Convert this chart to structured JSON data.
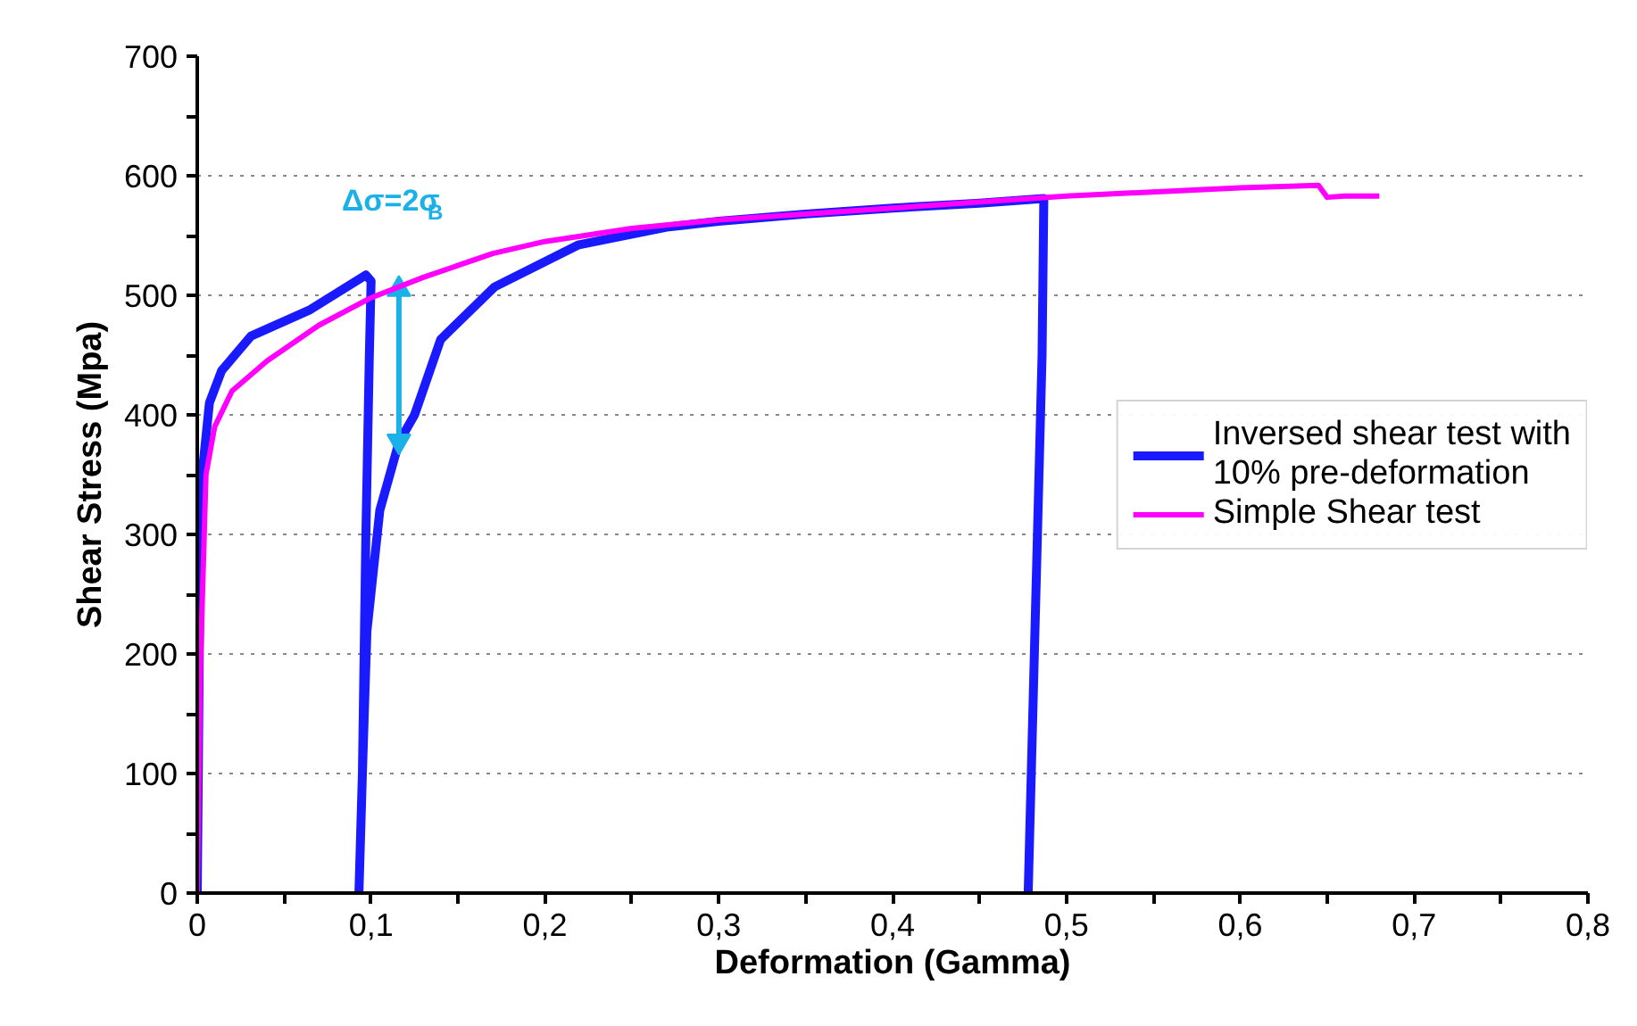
{
  "chart_data": {
    "type": "line",
    "xlabel": "Deformation (Gamma)",
    "ylabel": "Shear Stress (Mpa)",
    "xlim": [
      0,
      0.8
    ],
    "ylim": [
      0,
      700
    ],
    "xticks": [
      0,
      {
        "value": 0.05,
        "label": null
      },
      {
        "value": 0.1,
        "label": "0,1"
      },
      {
        "value": 0.15,
        "label": null
      },
      {
        "value": 0.2,
        "label": "0,2"
      },
      {
        "value": 0.25,
        "label": null
      },
      {
        "value": 0.3,
        "label": "0,3"
      },
      {
        "value": 0.35,
        "label": null
      },
      {
        "value": 0.4,
        "label": "0,4"
      },
      {
        "value": 0.45,
        "label": null
      },
      {
        "value": 0.5,
        "label": "0,5"
      },
      {
        "value": 0.55,
        "label": null
      },
      {
        "value": 0.6,
        "label": "0,6"
      },
      {
        "value": 0.65,
        "label": null
      },
      {
        "value": 0.7,
        "label": "0,7"
      },
      {
        "value": 0.75,
        "label": null
      },
      {
        "value": 0.8,
        "label": "0,8"
      }
    ],
    "yticks": [
      0,
      {
        "value": 50,
        "label": null
      },
      100,
      {
        "value": 150,
        "label": null
      },
      200,
      {
        "value": 250,
        "label": null
      },
      300,
      {
        "value": 350,
        "label": null
      },
      400,
      {
        "value": 450,
        "label": null
      },
      500,
      {
        "value": 550,
        "label": null
      },
      600,
      {
        "value": 650,
        "label": null
      },
      700
    ],
    "grid": "y",
    "legend": "right",
    "marker": "none",
    "line_style": "solid",
    "annotations": [
      {
        "text": "Δσ=2σ$_{B}$",
        "x": 0.116,
        "y": 505
      }
    ],
    "series": [
      {
        "name": "Inversed shear test with 10% pre-deformation",
        "color": "#1a1aff",
        "x": [
          0,
          0.002,
          0.007,
          0.014,
          0.031,
          0.065,
          0.097,
          0.1,
          0.099,
          0.097,
          0.095,
          0.093,
          0.095,
          0.0976,
          0.105,
          0.116,
          0.125,
          0.14,
          0.171,
          0.219,
          0.27,
          0.3,
          0.35,
          0.4,
          0.45,
          0.487,
          0.486,
          0.478
        ],
        "values": [
          0,
          339,
          410,
          437,
          466,
          488,
          517,
          512,
          450,
          300,
          100,
          0,
          100,
          219,
          320,
          377,
          400,
          463,
          507,
          542,
          557,
          562,
          568,
          573,
          577,
          581,
          450,
          0
        ]
      },
      {
        "color": "#1ab0e8",
        "marker": "triangle",
        "x": [
          0.116,
          0.116
        ],
        "values": [
          378,
          505
        ]
      },
      {
        "name": "Simple Shear test",
        "color": "#ff00ff",
        "x": [
          0,
          0.002,
          0.005,
          0.01,
          0.02,
          0.04,
          0.07,
          0.1,
          0.13,
          0.17,
          0.2,
          0.25,
          0.3,
          0.4,
          0.5,
          0.6,
          0.645,
          0.65,
          0.66,
          0.68
        ],
        "values": [
          0,
          200,
          350,
          390,
          420,
          445,
          475,
          498,
          515,
          535,
          545,
          556,
          563,
          573,
          583,
          590,
          592,
          582,
          583,
          583
        ]
      }
    ]
  }
}
